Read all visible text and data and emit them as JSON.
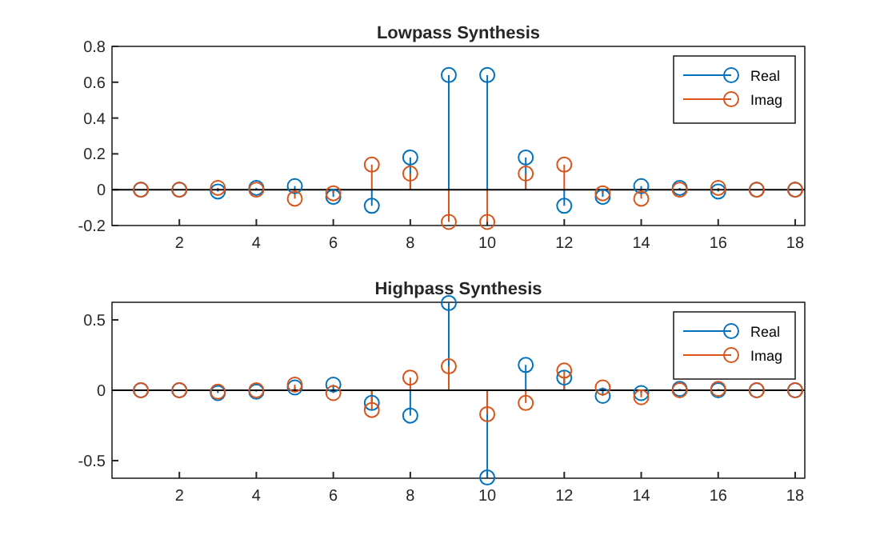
{
  "chart_data": [
    {
      "type": "lollipop",
      "title": "Lowpass Synthesis",
      "x": [
        1,
        2,
        3,
        4,
        5,
        6,
        7,
        8,
        9,
        10,
        11,
        12,
        13,
        14,
        15,
        16,
        17,
        18
      ],
      "xlim": [
        0.25,
        18.25
      ],
      "xticks": [
        2,
        4,
        6,
        8,
        10,
        12,
        14,
        16,
        18
      ],
      "ylim": [
        -0.2,
        0.8
      ],
      "yticks": [
        -0.2,
        0,
        0.2,
        0.4,
        0.6,
        0.8
      ],
      "marker": "circle",
      "legend": "top right",
      "ref_lines": [
        {
          "axis": "y",
          "value": 0,
          "color": "#000000"
        }
      ],
      "series": [
        {
          "name": "Real",
          "color": "#0072bd",
          "values": [
            0,
            0,
            -0.01,
            0.01,
            0.02,
            -0.04,
            -0.09,
            0.18,
            0.64,
            0.64,
            0.18,
            -0.09,
            -0.04,
            0.02,
            0.01,
            -0.01,
            0,
            0
          ]
        },
        {
          "name": "Imag",
          "color": "#d95319",
          "values": [
            0,
            0,
            0.01,
            0,
            -0.05,
            -0.02,
            0.14,
            0.09,
            -0.18,
            -0.18,
            0.09,
            0.14,
            -0.02,
            -0.05,
            0,
            0.01,
            0,
            0
          ]
        }
      ]
    },
    {
      "type": "lollipop",
      "title": "Highpass Synthesis",
      "x": [
        1,
        2,
        3,
        4,
        5,
        6,
        7,
        8,
        9,
        10,
        11,
        12,
        13,
        14,
        15,
        16,
        17,
        18
      ],
      "xlim": [
        0.25,
        18.25
      ],
      "xticks": [
        2,
        4,
        6,
        8,
        10,
        12,
        14,
        16,
        18
      ],
      "ylim": [
        -0.625,
        0.625
      ],
      "yticks": [
        -0.5,
        0,
        0.5
      ],
      "marker": "circle",
      "legend": "top right",
      "ref_lines": [
        {
          "axis": "y",
          "value": 0,
          "color": "#000000"
        }
      ],
      "series": [
        {
          "name": "Real",
          "color": "#0072bd",
          "values": [
            0,
            0,
            -0.02,
            -0.01,
            0.02,
            0.04,
            -0.09,
            -0.18,
            0.62,
            -0.62,
            0.18,
            0.09,
            -0.04,
            -0.02,
            0.01,
            0,
            0,
            0
          ]
        },
        {
          "name": "Imag",
          "color": "#d95319",
          "values": [
            0,
            0,
            -0.01,
            0,
            0.04,
            -0.02,
            -0.14,
            0.09,
            0.17,
            -0.17,
            -0.09,
            0.14,
            0.02,
            -0.05,
            0,
            0.01,
            0,
            0
          ]
        }
      ]
    }
  ]
}
